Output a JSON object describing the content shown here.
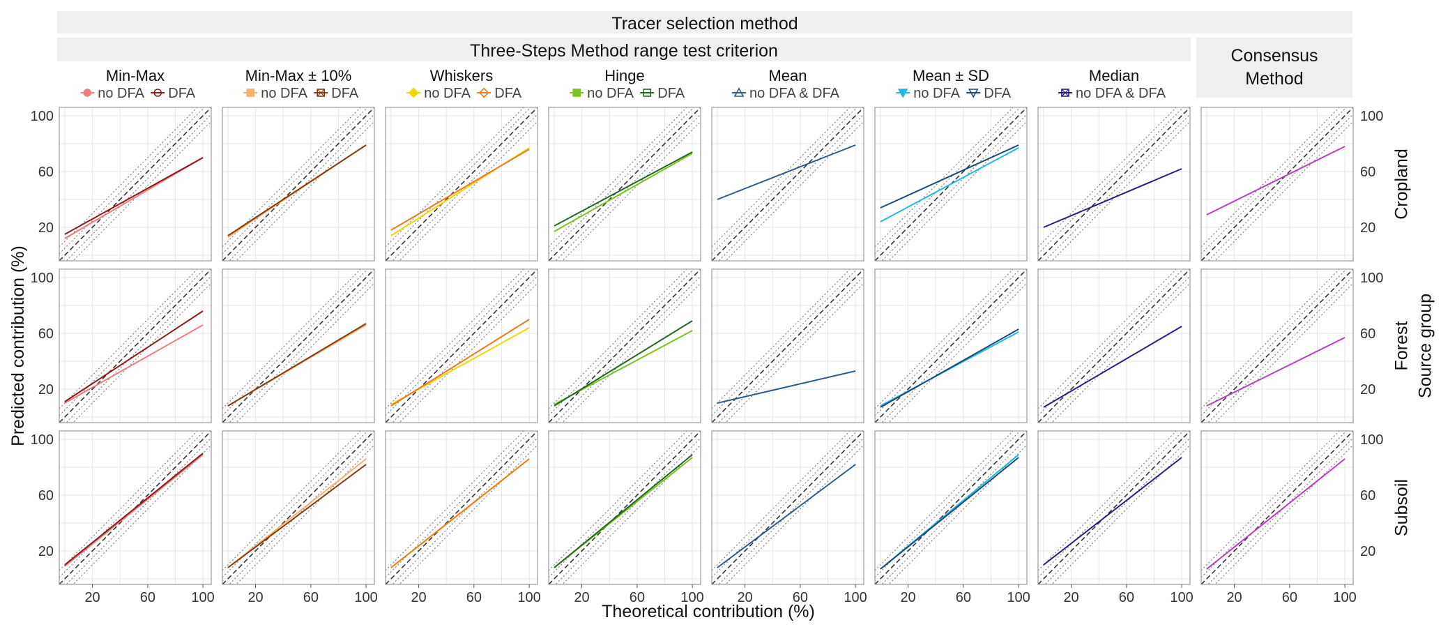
{
  "figure": {
    "strip_top": "Tracer selection method",
    "strip_sub": "Three-Steps Method range test criterion",
    "consensus_lines": [
      "Consensus",
      "Method"
    ],
    "y_label": "Predicted contribution (%)",
    "x_label": "Theoretical contribution (%)",
    "right_label": "Source group"
  },
  "chart_data": {
    "type": "scatter",
    "axes": {
      "x_ticks": [
        20,
        60,
        100
      ],
      "y_ticks": [
        20,
        60,
        100
      ],
      "xlim": [
        -4,
        106
      ],
      "ylim": [
        -4,
        106
      ]
    },
    "reference_lines": [
      {
        "name": "1:1 line",
        "style": "dashed",
        "slope": 1,
        "offset": 0
      },
      {
        "name": "+5 band",
        "style": "dotted",
        "slope": 1,
        "offset": 5
      },
      {
        "name": "-5 band",
        "style": "dotted",
        "slope": 1,
        "offset": -5
      },
      {
        "name": "+10 band",
        "style": "dotted",
        "slope": 1,
        "offset": 10
      },
      {
        "name": "-10 band",
        "style": "dotted",
        "slope": 1,
        "offset": -10
      }
    ],
    "rows": [
      "Cropland",
      "Forest",
      "Subsoil"
    ],
    "columns": [
      {
        "title": "Min-Max",
        "legend": [
          {
            "label": "no DFA",
            "color": "#F07C7C",
            "marker": "circle-filled"
          },
          {
            "label": "DFA",
            "color": "#8E1A1A",
            "marker": "circle-open"
          }
        ],
        "fits": {
          "Cropland": [
            [
              [
                0,
                12
              ],
              [
                100,
                70
              ]
            ],
            [
              [
                0,
                15
              ],
              [
                100,
                70
              ]
            ]
          ],
          "Forest": [
            [
              [
                0,
                10
              ],
              [
                100,
                66
              ]
            ],
            [
              [
                0,
                11
              ],
              [
                100,
                76
              ]
            ]
          ],
          "Subsoil": [
            [
              [
                0,
                9
              ],
              [
                100,
                89
              ]
            ],
            [
              [
                0,
                10
              ],
              [
                100,
                90
              ]
            ]
          ]
        }
      },
      {
        "title": "Min-Max ± 10%",
        "legend": [
          {
            "label": "no DFA",
            "color": "#F5B06B",
            "marker": "square-filled"
          },
          {
            "label": "DFA",
            "color": "#8A3B0E",
            "marker": "square-x"
          }
        ],
        "fits": {
          "Cropland": [
            [
              [
                0,
                13
              ],
              [
                100,
                79
              ]
            ],
            [
              [
                0,
                14
              ],
              [
                100,
                79
              ]
            ]
          ],
          "Forest": [
            [
              [
                0,
                8
              ],
              [
                100,
                66
              ]
            ],
            [
              [
                0,
                8
              ],
              [
                100,
                67
              ]
            ]
          ],
          "Subsoil": [
            [
              [
                0,
                8
              ],
              [
                100,
                86
              ]
            ],
            [
              [
                0,
                8
              ],
              [
                100,
                82
              ]
            ]
          ]
        }
      },
      {
        "title": "Whiskers",
        "legend": [
          {
            "label": "no DFA",
            "color": "#F2D600",
            "marker": "diamond-filled"
          },
          {
            "label": "DFA",
            "color": "#EE7A1C",
            "marker": "diamond-open"
          }
        ],
        "fits": {
          "Cropland": [
            [
              [
                0,
                14
              ],
              [
                100,
                77
              ]
            ],
            [
              [
                0,
                18
              ],
              [
                100,
                76
              ]
            ]
          ],
          "Forest": [
            [
              [
                0,
                9
              ],
              [
                100,
                64
              ]
            ],
            [
              [
                0,
                8
              ],
              [
                100,
                70
              ]
            ]
          ],
          "Subsoil": [
            [
              [
                0,
                8
              ],
              [
                100,
                86
              ]
            ],
            [
              [
                0,
                8
              ],
              [
                100,
                86
              ]
            ]
          ]
        }
      },
      {
        "title": "Hinge",
        "legend": [
          {
            "label": "no DFA",
            "color": "#7DC21E",
            "marker": "square-filled"
          },
          {
            "label": "DFA",
            "color": "#1E6B1E",
            "marker": "square-open"
          }
        ],
        "fits": {
          "Cropland": [
            [
              [
                0,
                17
              ],
              [
                100,
                73
              ]
            ],
            [
              [
                0,
                21
              ],
              [
                100,
                74
              ]
            ]
          ],
          "Forest": [
            [
              [
                0,
                9
              ],
              [
                100,
                62
              ]
            ],
            [
              [
                0,
                8
              ],
              [
                100,
                69
              ]
            ]
          ],
          "Subsoil": [
            [
              [
                0,
                8
              ],
              [
                100,
                87
              ]
            ],
            [
              [
                0,
                8
              ],
              [
                100,
                89
              ]
            ]
          ]
        }
      },
      {
        "title": "Mean",
        "legend": [
          {
            "label": "no DFA & DFA",
            "color": "#2E5C8A",
            "marker": "triangle-open"
          }
        ],
        "fits": {
          "Cropland": [
            [
              [
                0,
                40
              ],
              [
                100,
                79
              ]
            ]
          ],
          "Forest": [
            [
              [
                0,
                10
              ],
              [
                100,
                33
              ]
            ]
          ],
          "Subsoil": [
            [
              [
                0,
                8
              ],
              [
                100,
                82
              ]
            ]
          ]
        }
      },
      {
        "title": "Mean ± SD",
        "legend": [
          {
            "label": "no DFA",
            "color": "#1FB8E6",
            "marker": "triangle-down-filled"
          },
          {
            "label": "DFA",
            "color": "#1A4A7A",
            "marker": "triangle-down-open"
          }
        ],
        "fits": {
          "Cropland": [
            [
              [
                0,
                24
              ],
              [
                100,
                77
              ]
            ],
            [
              [
                0,
                34
              ],
              [
                100,
                79
              ]
            ]
          ],
          "Forest": [
            [
              [
                0,
                8
              ],
              [
                100,
                61
              ]
            ],
            [
              [
                0,
                7
              ],
              [
                100,
                63
              ]
            ]
          ],
          "Subsoil": [
            [
              [
                0,
                7
              ],
              [
                100,
                89
              ]
            ],
            [
              [
                0,
                7
              ],
              [
                100,
                87
              ]
            ]
          ]
        }
      },
      {
        "title": "Median",
        "legend": [
          {
            "label": "no DFA & DFA",
            "color": "#2C1B8C",
            "marker": "square-x"
          }
        ],
        "fits": {
          "Cropland": [
            [
              [
                0,
                20
              ],
              [
                100,
                62
              ]
            ]
          ],
          "Forest": [
            [
              [
                0,
                7
              ],
              [
                100,
                65
              ]
            ]
          ],
          "Subsoil": [
            [
              [
                0,
                10
              ],
              [
                100,
                87
              ]
            ]
          ]
        }
      },
      {
        "title": "",
        "legend": [],
        "color": "#C03AC8",
        "fits": {
          "Cropland": [
            [
              [
                0,
                29
              ],
              [
                100,
                78
              ]
            ]
          ],
          "Forest": [
            [
              [
                0,
                8
              ],
              [
                100,
                57
              ]
            ]
          ],
          "Subsoil": [
            [
              [
                0,
                7
              ],
              [
                100,
                86
              ]
            ]
          ]
        }
      }
    ]
  },
  "colors": {
    "strip_bg": "#EFEFEF",
    "grid": "#E6E6E6",
    "panel_border": "#999999",
    "consensus": "#C03AC8"
  }
}
